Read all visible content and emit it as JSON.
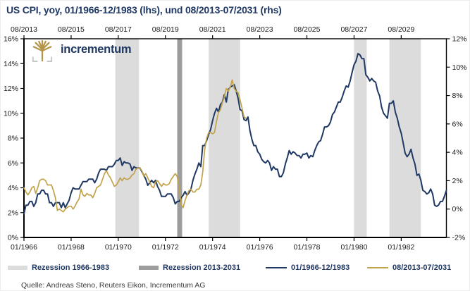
{
  "logo": {
    "text": "incrementum"
  },
  "source": {
    "text": "Quelle: Andreas Steno, Reuters Eikon, Incrementum AG"
  },
  "theme": {
    "accent_navy": "#1f3864",
    "accent_gold": "#c2a24a"
  },
  "chart_data": {
    "type": "line",
    "title": "US CPI, yoy, 01/1966-12/1983 (lhs), und 08/2013-07/2031 (rhs)",
    "months_span": 215,
    "grid": "off",
    "legend_position": "bottom",
    "x_axis_top": {
      "tick_months": [
        0,
        24,
        48,
        72,
        96,
        120,
        144,
        168,
        192
      ],
      "tick_labels": [
        "08/2013",
        "08/2015",
        "08/2017",
        "08/2019",
        "08/2021",
        "08/2023",
        "08/2025",
        "08/2027",
        "08/2029"
      ],
      "range_label": "08/2013 - 07/2031"
    },
    "x_axis_bottom": {
      "tick_months": [
        0,
        24,
        48,
        72,
        96,
        120,
        144,
        168,
        192
      ],
      "tick_labels": [
        "01/1966",
        "01/1968",
        "01/1970",
        "01/1972",
        "01/1974",
        "01/1976",
        "01/1978",
        "01/1980",
        "01/1982"
      ],
      "range_label": "01/1966 - 12/1983"
    },
    "y_axis_left": {
      "min": 0,
      "max": 16,
      "tick_values": [
        16,
        14,
        12,
        10,
        8,
        6,
        4,
        2,
        0
      ],
      "tick_labels": [
        "16%",
        "14%",
        "12%",
        "10%",
        "8%",
        "6%",
        "4%",
        "2%",
        "0%"
      ]
    },
    "y_axis_right": {
      "min": -2,
      "max": 12,
      "tick_values": [
        12,
        10,
        8,
        6,
        4,
        2,
        0,
        -2
      ],
      "tick_labels": [
        "12%",
        "10%",
        "8%",
        "6%",
        "4%",
        "2%",
        "0%",
        "-2%"
      ]
    },
    "recession_bands": [
      {
        "name": "Rezession 1966-1983",
        "color": "#dcdcdc",
        "axis": "bottom",
        "ranges_months": [
          [
            46.5,
            58.5
          ],
          [
            94,
            110
          ],
          [
            168,
            174.5
          ],
          [
            186,
            202
          ]
        ],
        "ranges_dates": [
          "12/1969-11/1970",
          "11/1973-03/1975",
          "01/1980-07/1980",
          "07/1981-11/1982"
        ]
      },
      {
        "name": "Rezession 2013-2031",
        "color": "#9d9d9d",
        "axis": "top",
        "ranges_months": [
          [
            78,
            80.5
          ]
        ],
        "ranges_dates": [
          "02/2020-04/2020"
        ]
      }
    ],
    "series": [
      {
        "name": "01/1966-12/1983",
        "axis": "left",
        "color": "#1f3864",
        "width": 2,
        "start_month": 0,
        "start_label": "01/1966",
        "values": [
          1.9,
          2.6,
          2.6,
          2.9,
          2.9,
          2.5,
          2.8,
          3.5,
          3.5,
          3.8,
          3.8,
          3.5,
          3.5,
          2.8,
          2.8,
          2.5,
          2.8,
          2.8,
          2.8,
          2.4,
          2.8,
          2.4,
          2.7,
          3.0,
          3.6,
          4.0,
          3.9,
          3.9,
          3.9,
          4.2,
          4.5,
          4.5,
          4.5,
          4.7,
          4.7,
          4.7,
          4.4,
          4.7,
          5.2,
          5.5,
          5.5,
          5.5,
          5.4,
          5.7,
          5.7,
          5.7,
          5.9,
          6.2,
          6.2,
          6.4,
          5.8,
          6.1,
          6.0,
          6.0,
          5.9,
          5.4,
          5.7,
          5.6,
          5.6,
          5.6,
          5.3,
          5.0,
          4.7,
          4.2,
          4.4,
          4.6,
          4.4,
          4.6,
          4.1,
          3.8,
          3.3,
          3.3,
          3.3,
          3.5,
          3.5,
          3.5,
          3.2,
          2.7,
          2.9,
          2.9,
          3.2,
          3.4,
          3.7,
          3.4,
          3.6,
          3.9,
          4.6,
          5.1,
          5.5,
          6.0,
          5.7,
          7.4,
          7.4,
          7.8,
          8.3,
          8.7,
          9.4,
          10.0,
          10.4,
          10.1,
          10.7,
          10.9,
          11.5,
          10.9,
          11.9,
          12.1,
          12.2,
          12.3,
          11.8,
          11.2,
          10.3,
          10.2,
          9.5,
          9.4,
          9.7,
          8.6,
          7.9,
          7.4,
          7.4,
          6.9,
          6.7,
          6.3,
          6.1,
          6.0,
          6.2,
          6.0,
          5.4,
          5.7,
          5.5,
          5.5,
          4.9,
          4.9,
          5.2,
          5.9,
          6.4,
          7.0,
          6.7,
          6.9,
          6.8,
          6.6,
          6.6,
          6.4,
          6.7,
          6.7,
          6.8,
          6.4,
          6.6,
          6.5,
          7.0,
          7.4,
          7.7,
          7.8,
          8.3,
          8.9,
          8.9,
          9.0,
          9.3,
          9.9,
          10.1,
          10.5,
          10.9,
          10.9,
          11.3,
          11.8,
          12.2,
          12.1,
          12.6,
          13.3,
          13.9,
          14.2,
          14.8,
          14.7,
          14.4,
          14.4,
          13.1,
          12.9,
          12.6,
          12.8,
          12.6,
          12.5,
          11.8,
          11.4,
          10.5,
          10.0,
          9.8,
          9.6,
          10.8,
          10.8,
          11.0,
          10.1,
          9.6,
          8.9,
          8.4,
          7.6,
          6.8,
          6.5,
          6.7,
          7.1,
          6.4,
          5.9,
          5.0,
          5.1,
          4.6,
          3.8,
          3.7,
          3.5,
          3.6,
          3.9,
          3.5,
          2.6,
          2.5,
          2.6,
          2.9,
          2.9,
          3.3,
          3.8
        ]
      },
      {
        "name": "08/2013-07/2031",
        "axis": "right",
        "color": "#c2a24a",
        "width": 1.7,
        "start_month": 0,
        "start_label": "08/2013",
        "end_label": "01/2023",
        "values": [
          1.5,
          1.2,
          1.0,
          1.2,
          1.5,
          1.6,
          1.1,
          1.5,
          2.0,
          2.1,
          2.1,
          2.0,
          1.7,
          1.7,
          1.7,
          1.3,
          0.8,
          -0.1,
          0.0,
          -0.1,
          -0.2,
          0.0,
          0.1,
          0.2,
          0.2,
          0.0,
          0.2,
          0.5,
          0.7,
          1.4,
          1.0,
          0.9,
          1.1,
          1.0,
          1.0,
          0.8,
          1.1,
          1.5,
          1.6,
          1.7,
          2.1,
          2.5,
          2.7,
          2.4,
          2.2,
          1.9,
          1.6,
          1.7,
          1.9,
          2.2,
          2.0,
          2.2,
          2.1,
          2.1,
          2.2,
          2.4,
          2.5,
          2.8,
          2.9,
          2.9,
          2.7,
          2.3,
          2.5,
          2.2,
          1.9,
          1.6,
          1.5,
          1.9,
          2.0,
          1.8,
          1.6,
          1.8,
          1.7,
          1.7,
          1.8,
          2.1,
          2.3,
          2.5,
          2.3,
          1.5,
          0.3,
          0.1,
          0.6,
          1.0,
          1.3,
          1.4,
          1.2,
          1.2,
          1.4,
          1.4,
          1.7,
          2.6,
          4.2,
          5.0,
          5.4,
          5.4,
          5.3,
          5.4,
          6.2,
          6.8,
          7.0,
          7.5,
          7.9,
          8.5,
          8.3,
          8.6,
          9.1,
          8.5,
          8.3,
          8.2,
          7.7,
          7.1,
          6.5,
          6.4
        ]
      }
    ]
  }
}
